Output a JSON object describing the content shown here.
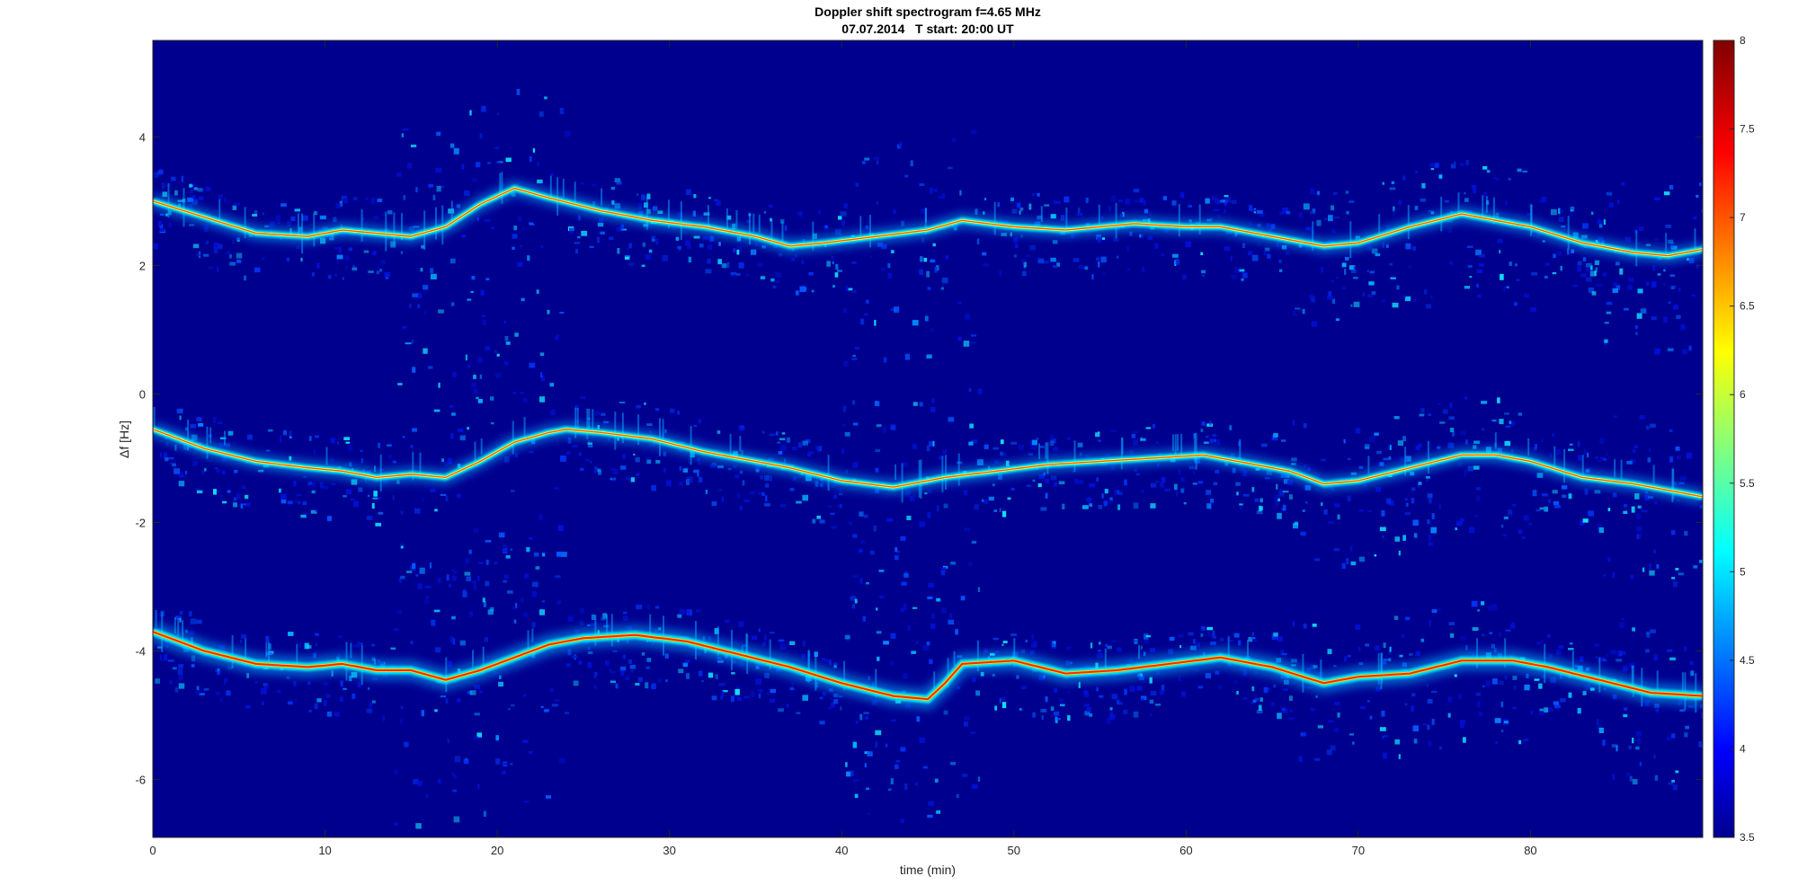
{
  "chart_data": {
    "type": "heatmap",
    "title": "Doppler shift spectrogram f=4.65 MHz",
    "subtitle": "07.07.2014   T start: 20:00 UT",
    "xlabel": "time (min)",
    "ylabel": "Δf [Hz]",
    "xlim": [
      0,
      90
    ],
    "ylim": [
      -6.9,
      5.5
    ],
    "x_ticks": [
      0,
      10,
      20,
      30,
      40,
      50,
      60,
      70,
      80
    ],
    "y_ticks": [
      -6,
      -4,
      -2,
      0,
      2,
      4
    ],
    "colorbar": {
      "colormap": "jet",
      "clim": [
        3.5,
        8
      ],
      "ticks": [
        3.5,
        4,
        4.5,
        5,
        5.5,
        6,
        6.5,
        7,
        7.5,
        8
      ]
    },
    "background_color": "#00008f",
    "series": [
      {
        "x": [
          0,
          3,
          6,
          9,
          11,
          13,
          15,
          17,
          19,
          21,
          23,
          26,
          29,
          32,
          35,
          37,
          39,
          42,
          45,
          47,
          50,
          53,
          57,
          60,
          62,
          65,
          68,
          70,
          73,
          76,
          78,
          80,
          83,
          86,
          88,
          90
        ],
        "y": [
          3.0,
          2.75,
          2.5,
          2.45,
          2.55,
          2.5,
          2.45,
          2.6,
          2.95,
          3.2,
          3.05,
          2.85,
          2.7,
          2.6,
          2.45,
          2.3,
          2.35,
          2.45,
          2.55,
          2.7,
          2.6,
          2.55,
          2.65,
          2.6,
          2.6,
          2.45,
          2.3,
          2.35,
          2.6,
          2.8,
          2.7,
          2.6,
          2.35,
          2.2,
          2.15,
          2.25
        ]
      },
      {
        "x": [
          0,
          3,
          6,
          9,
          11,
          13,
          15,
          17,
          19,
          21,
          23,
          24,
          26,
          29,
          32,
          35,
          37,
          40,
          43,
          46,
          49,
          52,
          55,
          58,
          61,
          63,
          66,
          68,
          70,
          73,
          76,
          78,
          80,
          83,
          86,
          88,
          90
        ],
        "y": [
          -0.55,
          -0.85,
          -1.05,
          -1.15,
          -1.2,
          -1.3,
          -1.25,
          -1.3,
          -1.05,
          -0.75,
          -0.6,
          -0.55,
          -0.6,
          -0.7,
          -0.9,
          -1.05,
          -1.15,
          -1.35,
          -1.45,
          -1.3,
          -1.2,
          -1.1,
          -1.05,
          -1.0,
          -0.95,
          -1.05,
          -1.2,
          -1.4,
          -1.35,
          -1.15,
          -0.95,
          -0.95,
          -1.05,
          -1.3,
          -1.4,
          -1.5,
          -1.6
        ]
      },
      {
        "x": [
          0,
          3,
          6,
          9,
          11,
          13,
          15,
          17,
          19,
          21,
          23,
          25,
          28,
          31,
          34,
          37,
          40,
          43,
          45,
          46,
          47,
          50,
          53,
          56,
          59,
          62,
          65,
          68,
          70,
          73,
          76,
          79,
          81,
          84,
          87,
          90
        ],
        "y": [
          -3.7,
          -4.0,
          -4.2,
          -4.25,
          -4.2,
          -4.3,
          -4.3,
          -4.45,
          -4.3,
          -4.1,
          -3.9,
          -3.8,
          -3.75,
          -3.85,
          -4.05,
          -4.25,
          -4.5,
          -4.7,
          -4.75,
          -4.5,
          -4.2,
          -4.15,
          -4.35,
          -4.3,
          -4.2,
          -4.1,
          -4.25,
          -4.5,
          -4.4,
          -4.35,
          -4.15,
          -4.15,
          -4.25,
          -4.45,
          -4.65,
          -4.7
        ]
      }
    ]
  }
}
